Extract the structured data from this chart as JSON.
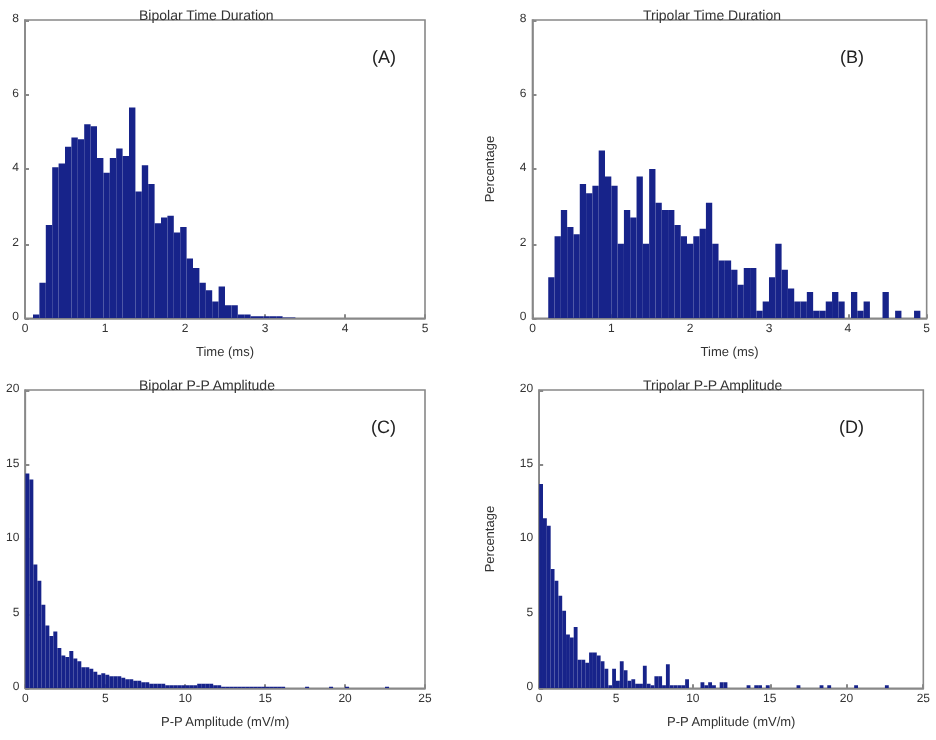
{
  "chart_data": [
    {
      "type": "histogram",
      "title": "Bipolar Time Duration",
      "xlabel": "Time (ms)",
      "annotations": [
        "(A)"
      ],
      "color": "#17238a",
      "bins": [
        0.1,
        0.18,
        0.26,
        0.34,
        0.42,
        0.5,
        0.58,
        0.66,
        0.74,
        0.82,
        0.9,
        0.98,
        1.06,
        1.14,
        1.22,
        1.3,
        1.38,
        1.46,
        1.54,
        1.62,
        1.7,
        1.78,
        1.86,
        1.94,
        2.02,
        2.1,
        2.18,
        2.26,
        2.34,
        2.42,
        2.5,
        2.58,
        2.66,
        2.74,
        2.82,
        2.9,
        2.98,
        3.06,
        3.14,
        3.22,
        3.3,
        3.38
      ],
      "values": [
        0.1,
        0.95,
        2.5,
        4.05,
        4.15,
        4.6,
        4.85,
        4.8,
        5.2,
        5.15,
        4.3,
        3.9,
        4.3,
        4.55,
        4.35,
        5.65,
        3.4,
        4.1,
        3.6,
        2.55,
        2.7,
        2.75,
        2.3,
        2.45,
        1.6,
        1.35,
        0.95,
        0.75,
        0.45,
        0.85,
        0.35,
        0.35,
        0.1,
        0.1,
        0.05,
        0.05,
        0.05,
        0.05,
        0.05,
        0.02,
        0.02
      ],
      "xlim": [
        0,
        5
      ],
      "xticks": [
        0,
        1,
        2,
        3,
        4,
        5
      ],
      "ylim": [
        0,
        8
      ],
      "yticks": [
        0,
        2,
        4,
        6,
        8
      ],
      "grid": false
    },
    {
      "type": "histogram",
      "title": "Tripolar Time Duration",
      "xlabel": "Time (ms)",
      "ylabel": "Percentage",
      "annotations": [
        "(B)"
      ],
      "color": "#17238a",
      "bins": [
        0.2,
        0.28,
        0.36,
        0.44,
        0.52,
        0.6,
        0.68,
        0.76,
        0.84,
        0.92,
        1,
        1.08,
        1.16,
        1.24,
        1.32,
        1.4,
        1.48,
        1.56,
        1.64,
        1.72,
        1.8,
        1.88,
        1.96,
        2.04,
        2.12,
        2.2,
        2.28,
        2.36,
        2.44,
        2.52,
        2.6,
        2.68,
        2.76,
        2.84,
        2.92,
        3,
        3.08,
        3.16,
        3.24,
        3.32,
        3.4,
        3.48,
        3.56,
        3.64,
        3.72,
        3.8,
        3.88,
        3.96,
        4.04,
        4.12,
        4.2,
        4.28,
        4.36,
        4.44,
        4.52,
        4.6,
        4.68,
        4.76,
        4.84,
        4.92
      ],
      "values": [
        1.1,
        2.2,
        2.9,
        2.45,
        2.25,
        3.6,
        3.35,
        3.55,
        4.5,
        3.8,
        3.55,
        2.0,
        2.9,
        2.7,
        3.8,
        2.0,
        4.0,
        3.1,
        2.9,
        2.9,
        2.5,
        2.2,
        2.0,
        2.2,
        2.4,
        3.1,
        2.0,
        1.55,
        1.55,
        1.3,
        0.9,
        1.35,
        1.35,
        0.2,
        0.45,
        1.1,
        2.0,
        1.3,
        0.8,
        0.45,
        0.45,
        0.7,
        0.2,
        0.2,
        0.45,
        0.7,
        0.45,
        null,
        0.7,
        0.2,
        0.45,
        null,
        null,
        0.7,
        null,
        0.2,
        null,
        null,
        0.2
      ],
      "xlim": [
        0,
        5
      ],
      "xticks": [
        0,
        1,
        2,
        3,
        4,
        5
      ],
      "ylim": [
        0,
        8
      ],
      "yticks": [
        0,
        2,
        4,
        6,
        8
      ],
      "grid": false
    },
    {
      "type": "histogram",
      "title": "Bipolar P-P Amplitude",
      "xlabel": "P-P Amplitude (mV/m)",
      "annotations": [
        "(C)"
      ],
      "color": "#17238a",
      "bins": [
        0,
        0.25,
        0.5,
        0.75,
        1,
        1.25,
        1.5,
        1.75,
        2,
        2.25,
        2.5,
        2.75,
        3,
        3.25,
        3.5,
        3.75,
        4,
        4.25,
        4.5,
        4.75,
        5,
        5.25,
        5.5,
        5.75,
        6,
        6.25,
        6.5,
        6.75,
        7,
        7.25,
        7.5,
        7.75,
        8,
        8.25,
        8.5,
        8.75,
        9,
        9.25,
        9.5,
        9.75,
        10,
        10.25,
        10.5,
        10.75,
        11,
        11.25,
        11.5,
        11.75,
        12,
        12.25,
        12.5,
        12.75,
        13,
        13.25,
        13.5,
        13.75,
        14,
        14.25,
        14.5,
        14.75,
        15,
        15.25,
        15.5,
        15.75,
        16,
        16.25,
        16.5,
        16.75,
        17,
        17.25,
        17.5,
        17.75,
        18,
        18.25,
        18.5,
        18.75,
        19,
        19.25,
        19.5,
        19.75,
        20,
        20.25,
        20.5,
        20.75,
        21,
        21.25,
        21.5,
        21.75,
        22,
        22.25,
        22.5,
        22.75,
        23,
        23.25,
        23.5,
        23.75,
        24,
        24.25,
        24.5,
        24.75,
        25
      ],
      "values": [
        14.4,
        14.0,
        8.3,
        7.2,
        5.6,
        4.2,
        3.5,
        3.8,
        2.7,
        2.2,
        2.1,
        2.5,
        2.0,
        1.8,
        1.4,
        1.4,
        1.3,
        1.1,
        0.9,
        1.0,
        0.9,
        0.8,
        0.8,
        0.8,
        0.7,
        0.6,
        0.6,
        0.5,
        0.5,
        0.4,
        0.4,
        0.3,
        0.3,
        0.3,
        0.3,
        0.2,
        0.2,
        0.2,
        0.2,
        0.2,
        0.2,
        0.2,
        0.2,
        0.3,
        0.3,
        0.3,
        0.3,
        0.2,
        0.2,
        0.1,
        0.1,
        0.1,
        0.1,
        0.1,
        0.1,
        0.1,
        0.1,
        0.1,
        0.1,
        0.1,
        0.1,
        0.1,
        0.1,
        0.1,
        0.1,
        null,
        null,
        null,
        null,
        null,
        0.1,
        null,
        null,
        null,
        null,
        null,
        0.1,
        null,
        null,
        null,
        0.1,
        null,
        null,
        null,
        null,
        null,
        null,
        null,
        null,
        null,
        0.1,
        null,
        null,
        null,
        null,
        null,
        null,
        null,
        null,
        null
      ],
      "xlim": [
        0,
        25
      ],
      "xticks": [
        0,
        5,
        10,
        15,
        20,
        25
      ],
      "ylim": [
        0,
        20
      ],
      "yticks": [
        0,
        5,
        10,
        15,
        20
      ],
      "grid": false
    },
    {
      "type": "histogram",
      "title": "Tripolar P-P Amplitude",
      "xlabel": "P-P Amplitude (mV/m)",
      "ylabel": "Percentage",
      "annotations": [
        "(D)"
      ],
      "color": "#17238a",
      "bins": [
        0,
        0.25,
        0.5,
        0.75,
        1,
        1.25,
        1.5,
        1.75,
        2,
        2.25,
        2.5,
        2.75,
        3,
        3.25,
        3.5,
        3.75,
        4,
        4.25,
        4.5,
        4.75,
        5,
        5.25,
        5.5,
        5.75,
        6,
        6.25,
        6.5,
        6.75,
        7,
        7.25,
        7.5,
        7.75,
        8,
        8.25,
        8.5,
        8.75,
        9,
        9.25,
        9.5,
        9.75,
        10,
        10.25,
        10.5,
        10.75,
        11,
        11.25,
        11.5,
        11.75,
        12,
        12.25,
        12.5,
        12.75,
        13,
        13.25,
        13.5,
        13.75,
        14,
        14.25,
        14.5,
        14.75,
        15,
        15.25,
        15.5,
        15.75,
        16,
        16.25,
        16.5,
        16.75,
        17,
        17.25,
        17.5,
        17.75,
        18,
        18.25,
        18.5,
        18.75,
        19,
        19.25,
        19.5,
        19.75,
        20,
        20.25,
        20.5,
        20.75,
        21,
        21.25,
        21.5,
        21.75,
        22,
        22.25,
        22.5,
        22.75,
        23,
        23.25,
        23.5,
        23.75,
        24,
        24.25,
        24.5,
        24.75,
        25
      ],
      "values": [
        13.7,
        11.4,
        10.9,
        8.0,
        7.2,
        6.2,
        5.2,
        3.6,
        3.4,
        4.1,
        1.9,
        1.9,
        1.7,
        2.4,
        2.4,
        2.2,
        1.8,
        1.3,
        0.2,
        1.3,
        0.5,
        1.8,
        1.2,
        0.5,
        0.6,
        0.3,
        0.3,
        1.5,
        0.3,
        0.2,
        0.8,
        0.8,
        0.2,
        1.6,
        0.2,
        0.2,
        0.2,
        0.2,
        0.6,
        null,
        null,
        null,
        0.4,
        0.2,
        0.4,
        0.2,
        null,
        0.4,
        0.4,
        null,
        null,
        null,
        null,
        null,
        0.2,
        null,
        0.2,
        0.2,
        null,
        0.2,
        null,
        null,
        null,
        null,
        null,
        null,
        null,
        0.2,
        null,
        null,
        null,
        null,
        null,
        0.2,
        null,
        0.2,
        null,
        null,
        null,
        null,
        null,
        null,
        0.2,
        null,
        null,
        null,
        null,
        null,
        null,
        null,
        0.2,
        null,
        null,
        null,
        null,
        null,
        null,
        null,
        null,
        null
      ],
      "xlim": [
        0,
        25
      ],
      "xticks": [
        0,
        5,
        10,
        15,
        20,
        25
      ],
      "ylim": [
        0,
        20
      ],
      "yticks": [
        0,
        5,
        10,
        15,
        20
      ],
      "grid": false
    }
  ]
}
